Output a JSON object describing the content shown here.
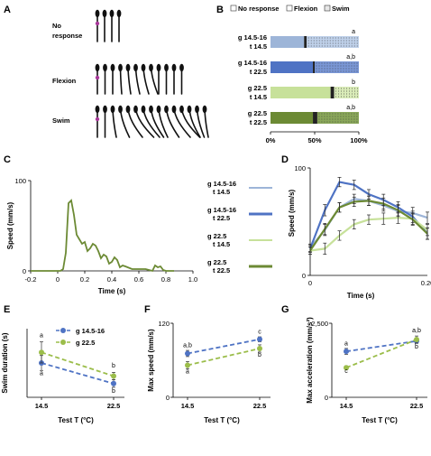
{
  "panels": {
    "A": {
      "label": "A",
      "row_labels": [
        "No\nresponse",
        "Flexion",
        "Swim"
      ]
    },
    "B": {
      "label": "B",
      "legend": [
        "No response",
        "Flexion",
        "Swim"
      ]
    },
    "C": {
      "label": "C"
    },
    "D": {
      "label": "D"
    },
    "E": {
      "label": "E"
    },
    "F": {
      "label": "F"
    },
    "G": {
      "label": "G"
    },
    "mid_legend": [
      {
        "line1": "g 14.5-16",
        "line2": "t 14.5",
        "color": "#9db5d8",
        "width": 2
      },
      {
        "line1": "g 14.5-16",
        "line2": "t 22.5",
        "color": "#4f73c4",
        "width": 3
      },
      {
        "line1": "g 22.5",
        "line2": "t 14.5",
        "color": "#c7e19a",
        "width": 2
      },
      {
        "line1": "g 22.5",
        "line2": "t 22.5",
        "color": "#6c8a34",
        "width": 3
      }
    ]
  },
  "chart_data": [
    {
      "panel": "B",
      "type": "bar",
      "orientation": "horizontal-stacked",
      "categories": [
        "g 14.5-16\nt 14.5",
        "g 14.5-16\nt 22.5",
        "g 22.5\nt 14.5",
        "g 22.5\nt 22.5"
      ],
      "series": [
        {
          "name": "No response",
          "values": [
            38,
            48,
            68,
            48
          ]
        },
        {
          "name": "Flexion",
          "values": [
            3,
            2,
            4,
            5
          ]
        },
        {
          "name": "Swim",
          "values": [
            59,
            50,
            28,
            47
          ]
        }
      ],
      "significance": [
        "a",
        "a,b",
        "b",
        "a,b"
      ],
      "colors": [
        {
          "nores": "#9db5d8",
          "swim": "#bfd1ea"
        },
        {
          "nores": "#4f73c4",
          "swim": "#7a97d6"
        },
        {
          "nores": "#c7e19a",
          "swim": "#d9ebb8"
        },
        {
          "nores": "#6c8a34",
          "swim": "#8aa75a"
        }
      ],
      "xticks": [
        "0%",
        "50%",
        "100%"
      ],
      "xlim": [
        0,
        100
      ]
    },
    {
      "panel": "C",
      "type": "line",
      "xlabel": "Time (s)",
      "ylabel": "Speed (mm/s)",
      "xlim": [
        -0.2,
        1.0
      ],
      "ylim": [
        0,
        100
      ],
      "xticks": [
        "-0.2",
        "0",
        "0.2",
        "0.4",
        "0.6",
        "0.8",
        "1.0"
      ],
      "yticks": [
        "0",
        "100"
      ],
      "color": "#6c8a34",
      "x": [
        -0.2,
        -0.1,
        -0.02,
        0.0,
        0.02,
        0.04,
        0.06,
        0.08,
        0.1,
        0.12,
        0.14,
        0.16,
        0.18,
        0.2,
        0.22,
        0.24,
        0.26,
        0.28,
        0.3,
        0.32,
        0.34,
        0.36,
        0.38,
        0.4,
        0.42,
        0.44,
        0.46,
        0.48,
        0.5,
        0.55,
        0.6,
        0.65,
        0.7,
        0.72,
        0.74,
        0.76,
        0.78,
        0.8,
        0.82,
        0.84,
        0.86
      ],
      "y": [
        0,
        0,
        0,
        0,
        0,
        2,
        20,
        75,
        78,
        62,
        40,
        35,
        30,
        32,
        22,
        25,
        30,
        28,
        22,
        14,
        18,
        16,
        8,
        10,
        15,
        12,
        4,
        6,
        5,
        2,
        2,
        2,
        0,
        6,
        4,
        5,
        1,
        0,
        0,
        0,
        0
      ]
    },
    {
      "panel": "D",
      "type": "line",
      "xlabel": "Time (s)",
      "ylabel": "Speed (mm/s)",
      "xlim": [
        0,
        0.2
      ],
      "ylim": [
        0,
        100
      ],
      "xticks": [
        "0",
        "0.20"
      ],
      "yticks": [
        "0",
        "100"
      ],
      "x": [
        0,
        0.025,
        0.05,
        0.075,
        0.1,
        0.125,
        0.15,
        0.175,
        0.2
      ],
      "series": [
        {
          "name": "g 14.5-16 t 14.5",
          "color": "#9db5d8",
          "values": [
            15,
            34,
            58,
            67,
            65,
            60,
            54,
            52,
            47
          ]
        },
        {
          "name": "g 14.5-16 t 22.5",
          "color": "#4f73c4",
          "values": [
            14,
            55,
            85,
            82,
            72,
            66,
            58,
            48,
            30
          ]
        },
        {
          "name": "g 22.5 t 14.5",
          "color": "#c7e19a",
          "values": [
            12,
            14,
            28,
            40,
            45,
            46,
            47,
            46,
            34
          ]
        },
        {
          "name": "g 22.5 t 22.5",
          "color": "#6c8a34",
          "values": [
            12,
            35,
            58,
            64,
            65,
            62,
            55,
            45,
            30
          ]
        }
      ],
      "errors": [
        4,
        6,
        5,
        5,
        5,
        6,
        6,
        6,
        6
      ]
    },
    {
      "panel": "E",
      "type": "line",
      "xlabel": "Test T (°C)",
      "ylabel": "Swim duration (s)",
      "categories": [
        "14.5",
        "22.5"
      ],
      "legend": [
        "g 14.5-16",
        "g 22.5"
      ],
      "series": [
        {
          "name": "g 14.5-16",
          "color": "#4f73c4",
          "values": [
            0.55,
            0.22
          ],
          "errors": [
            0.12,
            0.06
          ],
          "sig": [
            "a",
            "b"
          ]
        },
        {
          "name": "g 22.5",
          "color": "#9bbd4a",
          "values": [
            0.72,
            0.34
          ],
          "errors": [
            0.17,
            0.06
          ],
          "sig": [
            "a",
            "b"
          ]
        }
      ],
      "ylim": [
        0,
        1.1
      ]
    },
    {
      "panel": "F",
      "type": "line",
      "xlabel": "Test T (°C)",
      "ylabel": "Max speed (mm/s)",
      "categories": [
        "14.5",
        "22.5"
      ],
      "yticks": [
        "0",
        "120"
      ],
      "series": [
        {
          "name": "g 14.5-16",
          "color": "#4f73c4",
          "values": [
            71,
            94
          ],
          "errors": [
            5,
            4
          ],
          "sig": [
            "a,b",
            "c"
          ]
        },
        {
          "name": "g 22.5",
          "color": "#9bbd4a",
          "values": [
            52,
            79
          ],
          "errors": [
            6,
            6
          ],
          "sig": [
            "a",
            "b"
          ]
        }
      ],
      "ylim": [
        0,
        120
      ]
    },
    {
      "panel": "G",
      "type": "line",
      "xlabel": "Test T (°C)",
      "ylabel": "Max acceleration (mm/s²)",
      "categories": [
        "14.5",
        "22.5"
      ],
      "yticks": [
        "0",
        "2,500"
      ],
      "series": [
        {
          "name": "g 14.5-16",
          "color": "#4f73c4",
          "values": [
            1550,
            1900
          ],
          "errors": [
            100,
            80
          ],
          "sig": [
            "a",
            "b"
          ]
        },
        {
          "name": "g 22.5",
          "color": "#9bbd4a",
          "values": [
            1000,
            1950
          ],
          "errors": [
            60,
            120
          ],
          "sig": [
            "c",
            "a,b"
          ]
        }
      ],
      "ylim": [
        0,
        2500
      ]
    }
  ]
}
